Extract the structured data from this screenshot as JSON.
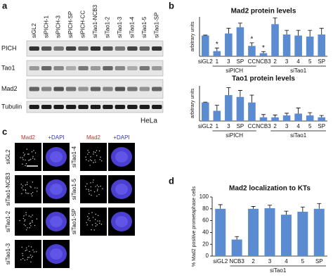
{
  "panel_letters": [
    "a",
    "b",
    "c",
    "d"
  ],
  "blot": {
    "lanes": [
      "siGL2",
      "siPICH-1",
      "siPICH-3",
      "siPICH-SP",
      "siPICH-CC",
      "siTao1-NCB3",
      "siTao1-2",
      "siTao1-3",
      "siTao1-4",
      "siTao1-5",
      "siTao1-SP"
    ],
    "rows": [
      "PICH",
      "Tao1",
      "Mad2",
      "Tubulin"
    ],
    "cell_line": "HeLa"
  },
  "micrographs": {
    "channels": [
      "Mad2",
      "+DAPI",
      "Mad2",
      "+DAPI"
    ],
    "left_rows": [
      "siGL2",
      "siTao1-NCB3",
      "siTao1-2",
      "siTao1-3"
    ],
    "right_rows": [
      "siTao1-4",
      "siTao1-5",
      "siTao1-SP"
    ]
  },
  "chart_data": [
    {
      "type": "bar",
      "title": "Mad2 protein levels",
      "y_label": "arbitrary units",
      "color": "#5b8bd0",
      "categories": [
        "siGL2",
        "1",
        "3",
        "SP",
        "CC",
        "NCB3",
        "2",
        "3",
        "4",
        "5",
        "SP"
      ],
      "values": [
        1.0,
        0.25,
        1.1,
        1.4,
        0.5,
        0.15,
        1.55,
        1.05,
        1.0,
        0.95,
        1.05
      ],
      "errors": [
        0.02,
        0.15,
        0.25,
        0.2,
        0.15,
        0.08,
        0.3,
        0.2,
        0.25,
        0.3,
        0.3
      ],
      "markers": [
        null,
        "*",
        null,
        null,
        "*",
        "*",
        null,
        null,
        null,
        null,
        null
      ],
      "groups": [
        {
          "name": "siPICH",
          "from": 1,
          "to": 4
        },
        {
          "name": "siTao1",
          "from": 6,
          "to": 10
        }
      ],
      "ylim": [
        0,
        1.9
      ]
    },
    {
      "type": "bar",
      "title": "Tao1 protein levels",
      "y_label": "arbitrary units",
      "color": "#5b8bd0",
      "categories": [
        "siGL2",
        "1",
        "3",
        "SP",
        "CC",
        "NCB3",
        "2",
        "3",
        "4",
        "5",
        "SP"
      ],
      "values": [
        1.0,
        0.55,
        1.4,
        1.3,
        1.0,
        0.2,
        0.2,
        0.3,
        0.4,
        0.3,
        0.2
      ],
      "errors": [
        0.02,
        0.3,
        0.4,
        0.35,
        0.4,
        0.15,
        0.12,
        0.12,
        0.3,
        0.15,
        0.1
      ],
      "groups": [
        {
          "name": "siPICH",
          "from": 1,
          "to": 4
        },
        {
          "name": "siTao1",
          "from": 6,
          "to": 10
        }
      ],
      "ylim": [
        0,
        1.9
      ]
    },
    {
      "type": "bar",
      "title": "Mad2 localization to KTs",
      "y_label": "% Mad2 positive prometaphase cells",
      "color": "#5b8bd0",
      "categories": [
        "siGL2",
        "NCB3",
        "2",
        "3",
        "4",
        "5",
        "SP"
      ],
      "values": [
        80,
        28,
        80,
        81,
        70,
        75,
        80
      ],
      "errors": [
        7,
        5,
        4,
        5,
        6,
        8,
        9
      ],
      "groups": [
        {
          "name": "siTao1",
          "from": 1,
          "to": 6
        }
      ],
      "ylim": [
        0,
        100
      ],
      "yticks": [
        0,
        20,
        40,
        60,
        80,
        100
      ]
    }
  ]
}
